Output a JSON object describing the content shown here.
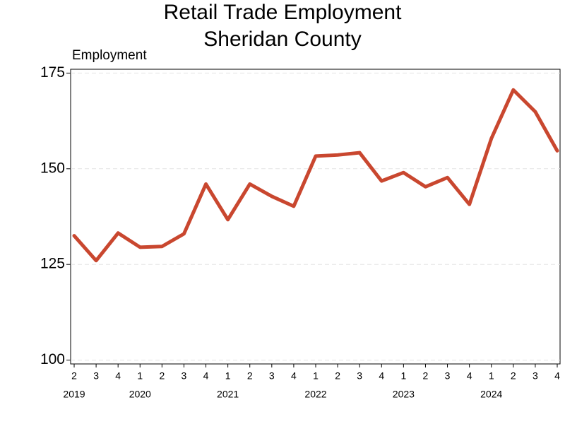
{
  "chart_data": {
    "type": "line",
    "title": "Retail Trade Employment",
    "subtitle": "Sheridan County",
    "y_label": "Employment",
    "categories": [
      "2",
      "3",
      "4",
      "1",
      "2",
      "3",
      "4",
      "1",
      "2",
      "3",
      "4",
      "1",
      "2",
      "3",
      "4",
      "1",
      "2",
      "3",
      "4",
      "1",
      "2",
      "3",
      "4"
    ],
    "year_groups": [
      {
        "label": "2019",
        "count": 3
      },
      {
        "label": "2020",
        "count": 4
      },
      {
        "label": "2021",
        "count": 4
      },
      {
        "label": "2022",
        "count": 4
      },
      {
        "label": "2023",
        "count": 4
      },
      {
        "label": "2024",
        "count": 4
      }
    ],
    "series": [
      {
        "name": "Employment",
        "color": "#c9472f",
        "values": [
          132.5,
          126,
          133.2,
          129.5,
          129.7,
          133,
          146,
          136.7,
          146,
          142.8,
          140.2,
          153.3,
          153.6,
          154.2,
          146.8,
          149,
          145.3,
          147.7,
          140.7,
          157.9,
          170.6,
          164.9,
          154.7
        ]
      }
    ],
    "ylim": [
      99,
      176
    ],
    "yticks": [
      100,
      125,
      150,
      175
    ],
    "grid": true
  }
}
